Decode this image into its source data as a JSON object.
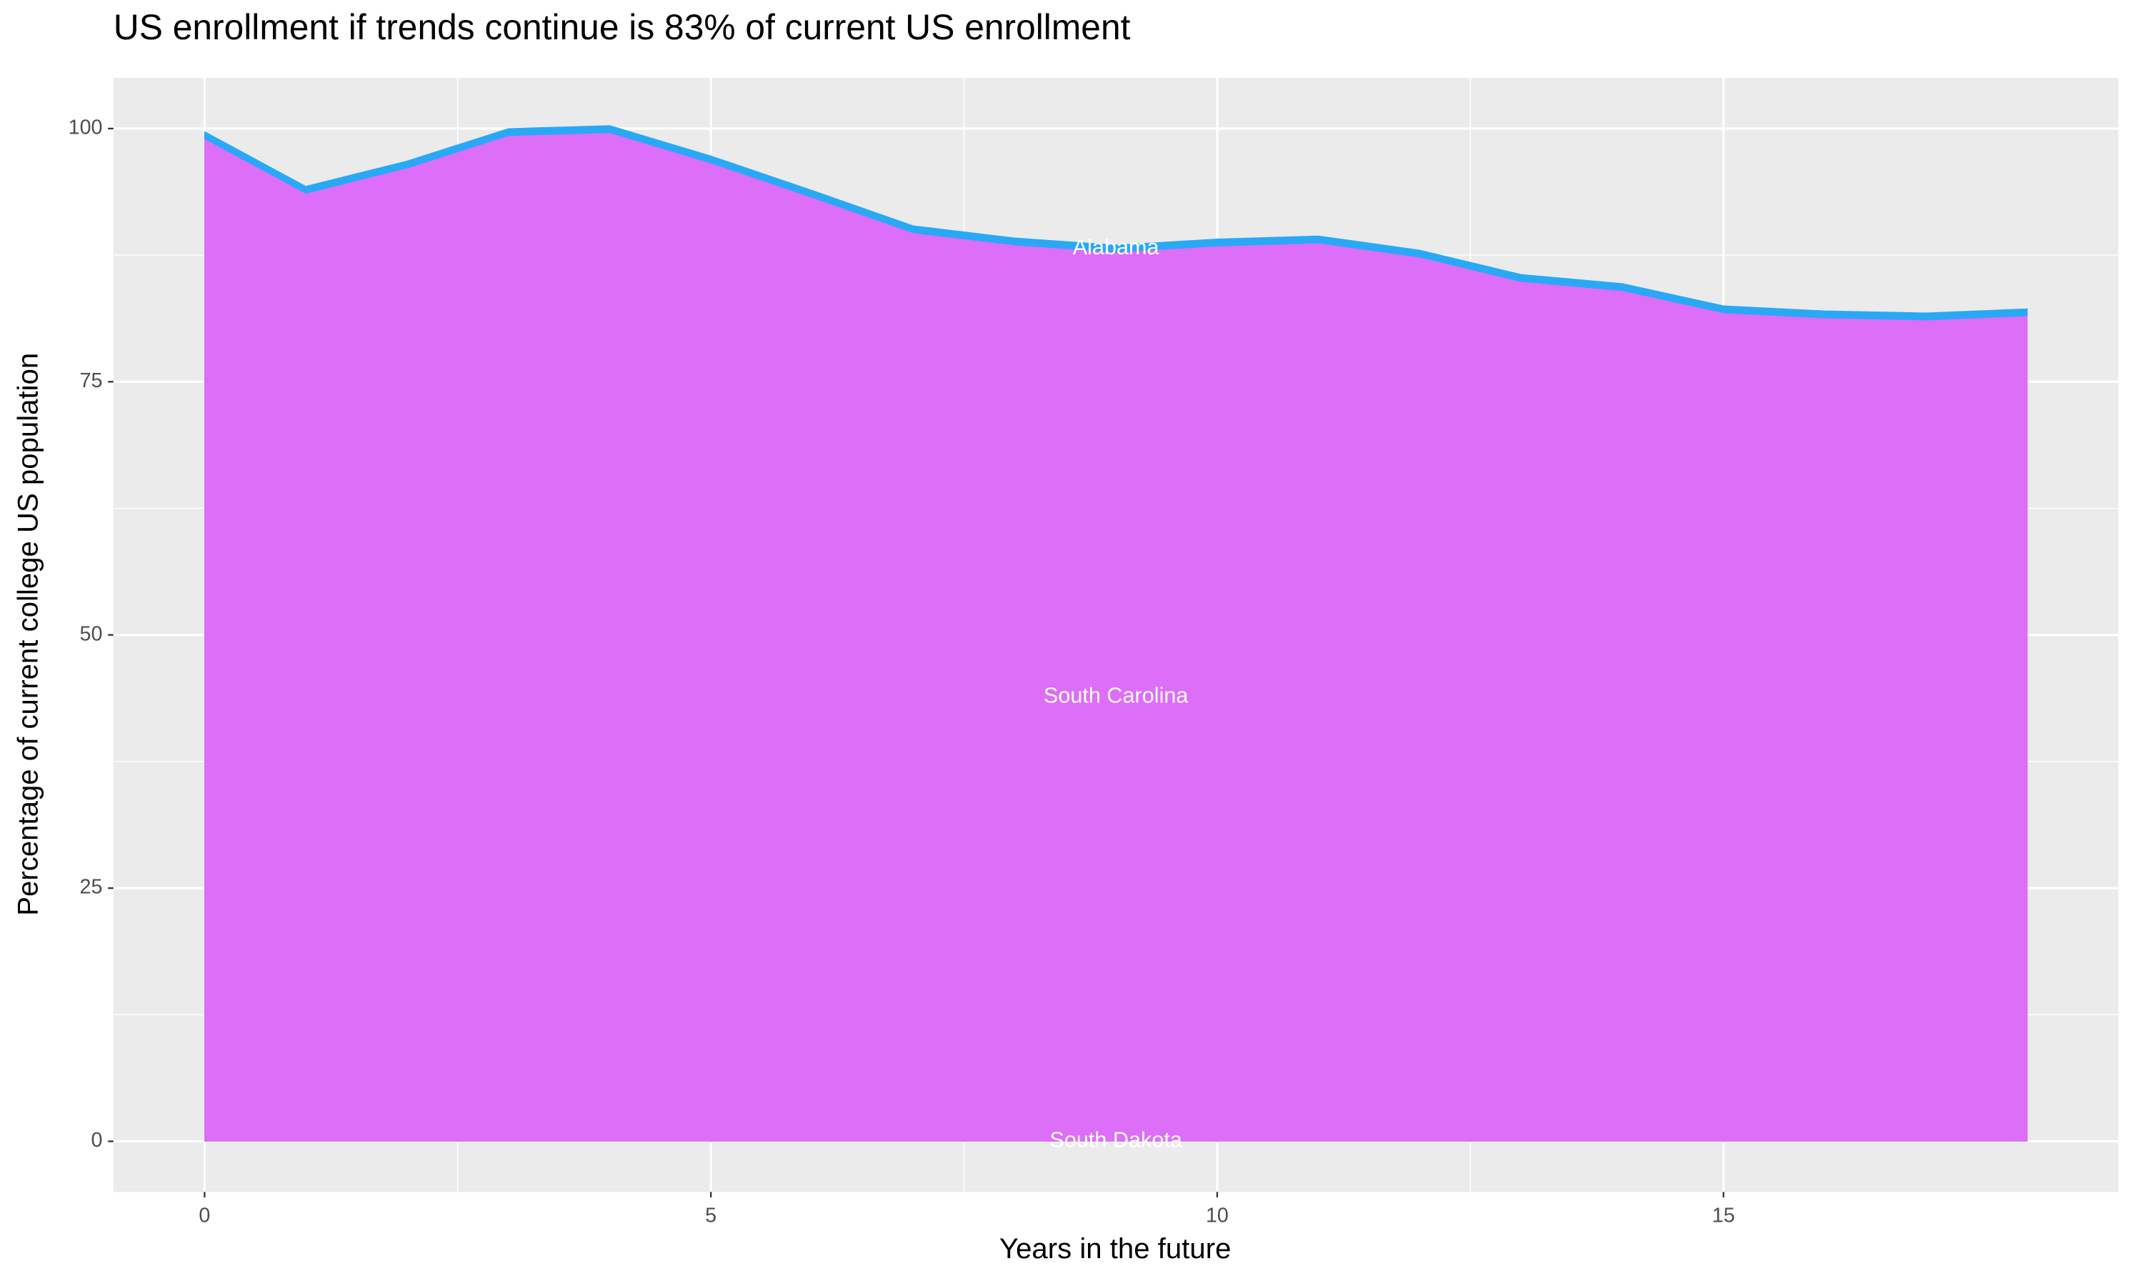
{
  "chart_data": {
    "type": "stacked_area",
    "title": "US enrollment if trends continue is 83% of current US enrollment",
    "xlabel": "Years in the future",
    "ylabel": "Percentage of current college US population",
    "x": [
      0,
      1,
      2,
      3,
      4,
      5,
      6,
      7,
      8,
      9,
      10,
      11,
      12,
      13,
      14,
      15,
      16,
      17,
      18
    ],
    "series": [
      {
        "name": "South Dakota",
        "color": "#e76bf3",
        "values": [
          0,
          0,
          0,
          0,
          0,
          0,
          0,
          0,
          0,
          0,
          0,
          0,
          0,
          0,
          0,
          0,
          0,
          0,
          0
        ]
      },
      {
        "name": "South Carolina",
        "color": "#dc6ef7",
        "values": [
          99.0,
          93.6,
          96.1,
          99.3,
          99.6,
          96.6,
          93.2,
          89.7,
          88.5,
          87.8,
          88.4,
          88.7,
          87.3,
          84.9,
          84.0,
          81.8,
          81.3,
          81.1,
          81.5
        ]
      },
      {
        "name": "Alabama",
        "color": "#29a9f5",
        "values": [
          0.7,
          0.7,
          0.7,
          0.7,
          0.7,
          0.7,
          0.7,
          0.7,
          0.7,
          0.7,
          0.7,
          0.7,
          0.7,
          0.7,
          0.7,
          0.7,
          0.7,
          0.7,
          0.7
        ]
      }
    ],
    "xlim": [
      -0.9,
      18.9
    ],
    "ylim": [
      -5,
      105
    ],
    "xticks": [
      0,
      5,
      10,
      15
    ],
    "yticks": [
      0,
      25,
      50,
      75,
      100
    ],
    "grid": true
  }
}
